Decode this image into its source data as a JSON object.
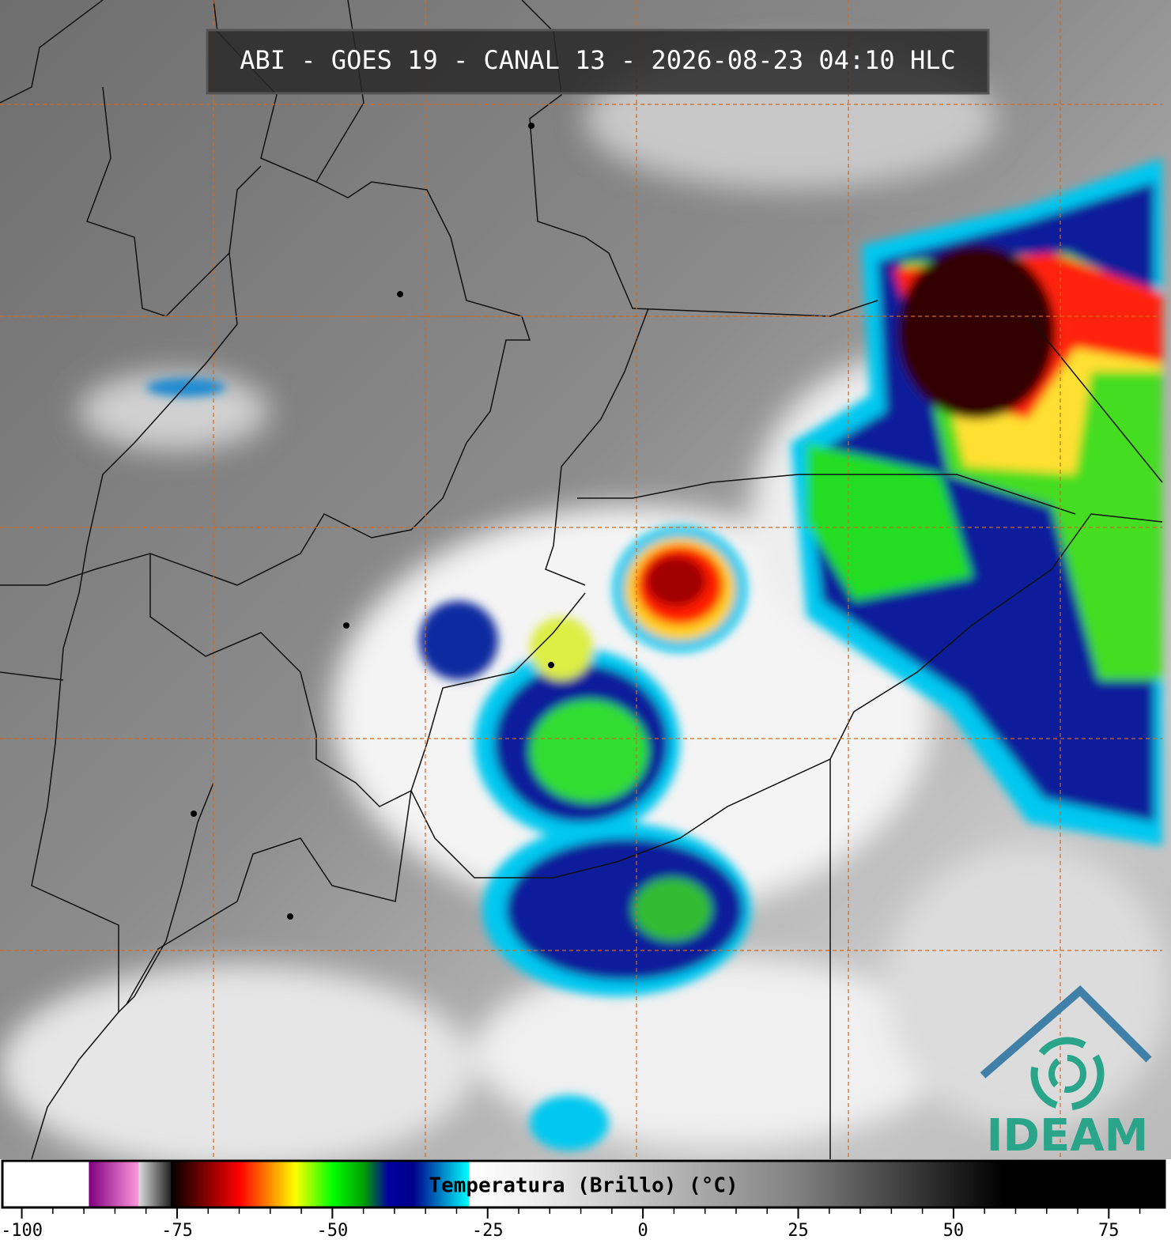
{
  "header": {
    "title": "ABI - GOES 19 - CANAL 13 - 2026-08-23 04:10 HLC"
  },
  "logo": {
    "text": "IDEAM",
    "color": "#2aa58a"
  },
  "colorbar": {
    "label": "Temperatura (Brillo) (°C)",
    "range": [
      -103,
      84
    ],
    "ticks": [
      -100,
      -75,
      -50,
      -25,
      0,
      25,
      50,
      75
    ],
    "minor_step": 5,
    "stops": [
      {
        "value": -103,
        "color": "#ffffff"
      },
      {
        "value": -89.2,
        "color": "#ffffff"
      },
      {
        "value": -89.2,
        "color": "#800080"
      },
      {
        "value": -81.2,
        "color": "#ff99dd"
      },
      {
        "value": -81.2,
        "color": "#dddddd"
      },
      {
        "value": -76,
        "color": "#202020"
      },
      {
        "value": -76,
        "color": "#000000"
      },
      {
        "value": -70,
        "color": "#8b0000"
      },
      {
        "value": -65,
        "color": "#ff0000"
      },
      {
        "value": -60,
        "color": "#ff8c00"
      },
      {
        "value": -56,
        "color": "#ffff00"
      },
      {
        "value": -50,
        "color": "#00ff00"
      },
      {
        "value": -45,
        "color": "#00a000"
      },
      {
        "value": -41,
        "color": "#0000a0"
      },
      {
        "value": -37,
        "color": "#00008b"
      },
      {
        "value": -28,
        "color": "#00ffff"
      },
      {
        "value": -28,
        "color": "#ffffff"
      },
      {
        "value": -18,
        "color": "#f0f0f0"
      },
      {
        "value": 25,
        "color": "#808080"
      },
      {
        "value": 58,
        "color": "#000000"
      },
      {
        "value": 84,
        "color": "#000000"
      }
    ]
  }
}
